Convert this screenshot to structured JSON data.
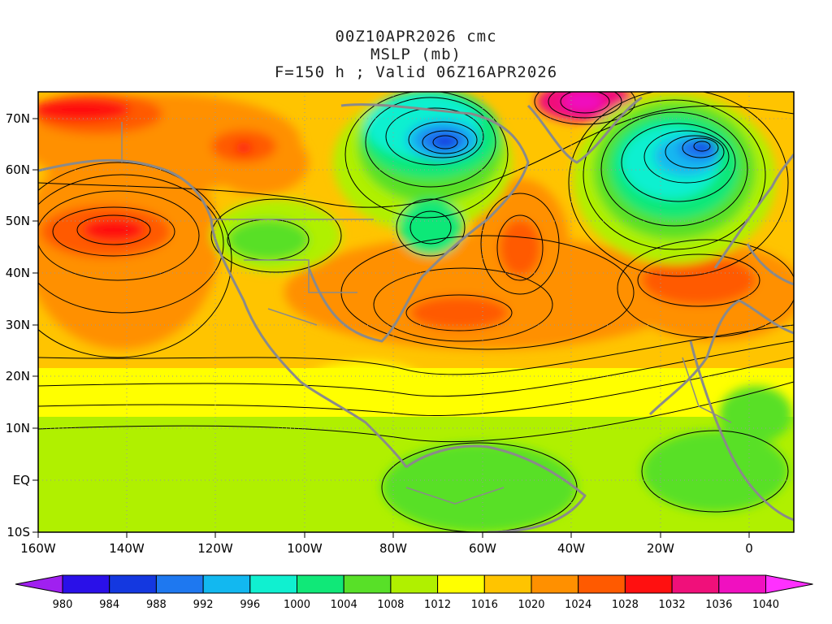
{
  "title": {
    "line1": "00Z10APR2026 cmc",
    "line2": "MSLP (mb)",
    "line3": "F=150 h ; Valid 06Z16APR2026"
  },
  "map": {
    "lon_labels": [
      "160W",
      "140W",
      "120W",
      "100W",
      "80W",
      "60W",
      "40W",
      "20W",
      "0"
    ],
    "lat_labels": [
      "70N",
      "60N",
      "50N",
      "40N",
      "30N",
      "20N",
      "10N",
      "EQ",
      "10S"
    ]
  },
  "colorbar": {
    "levels": [
      "980",
      "984",
      "988",
      "992",
      "996",
      "1000",
      "1004",
      "1008",
      "1012",
      "1016",
      "1020",
      "1024",
      "1028",
      "1032",
      "1036",
      "1040"
    ],
    "colors": [
      "#a020f0",
      "#2a10e8",
      "#1438e0",
      "#1e78f0",
      "#12b8f0",
      "#10f0d0",
      "#10e878",
      "#58e028",
      "#b0f000",
      "#ffff00",
      "#ffc400",
      "#ff9000",
      "#ff5a00",
      "#ff1010",
      "#f0107a",
      "#f010c0",
      "#ff30ff"
    ]
  }
}
